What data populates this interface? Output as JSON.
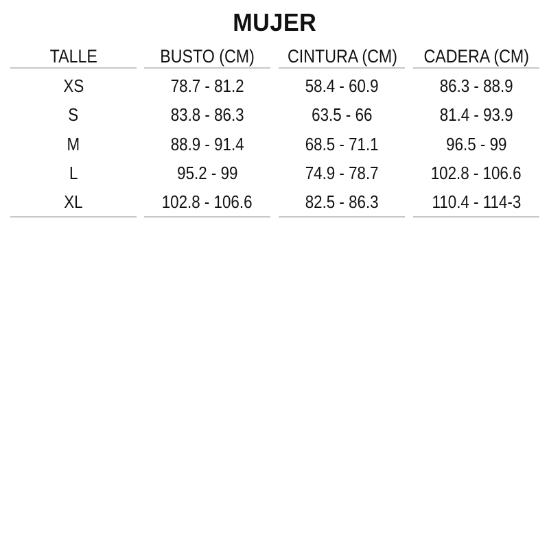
{
  "title": "MUJER",
  "columns": [
    "TALLE",
    "BUSTO (CM)",
    "CINTURA (CM)",
    "CADERA (CM)"
  ],
  "rows": [
    [
      "XS",
      "78.7 - 81.2",
      "58.4 - 60.9",
      "86.3 - 88.9"
    ],
    [
      "S",
      "83.8 - 86.3",
      "63.5 - 66",
      "81.4 - 93.9"
    ],
    [
      "M",
      "88.9 - 91.4",
      "68.5 - 71.1",
      "96.5 - 99"
    ],
    [
      "L",
      "95.2 - 99",
      "74.9 - 78.7",
      "102.8 - 106.6"
    ],
    [
      "XL",
      "102.8 - 106.6",
      "82.5 - 86.3",
      "110.4 - 114-3"
    ]
  ]
}
